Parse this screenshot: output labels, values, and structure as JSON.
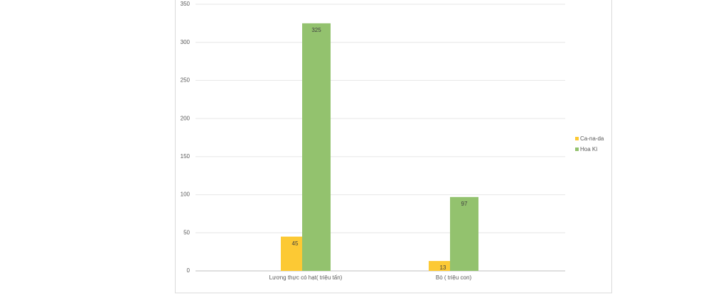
{
  "chart_data": {
    "type": "bar",
    "categories": [
      "Lương thực có hạt( triệu tấn)",
      "Bò ( triệu con)"
    ],
    "series": [
      {
        "name": "Ca-na-da",
        "color": "#fcc934",
        "values": [
          45,
          13
        ]
      },
      {
        "name": "Hoa Kì",
        "color": "#93c26e",
        "values": [
          325,
          97
        ]
      }
    ],
    "ylim": [
      0,
      350
    ],
    "yticks": [
      0,
      50,
      100,
      150,
      200,
      250,
      300,
      350
    ],
    "grid": true,
    "legend": "right"
  }
}
